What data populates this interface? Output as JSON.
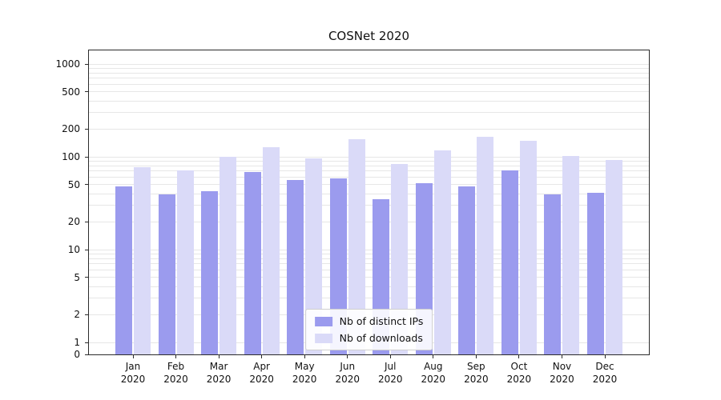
{
  "chart_data": {
    "type": "bar",
    "title": "COSNet 2020",
    "categories": [
      "Jan 2020",
      "Feb 2020",
      "Mar 2020",
      "Apr 2020",
      "May 2020",
      "Jun 2020",
      "Jul 2020",
      "Aug 2020",
      "Sep 2020",
      "Oct 2020",
      "Nov 2020",
      "Dec 2020"
    ],
    "series": [
      {
        "name": "Nb of distinct IPs",
        "color": "#9b9bee",
        "values": [
          48,
          39,
          43,
          68,
          56,
          58,
          35,
          52,
          48,
          71,
          39,
          41
        ]
      },
      {
        "name": "Nb of downloads",
        "color": "#dadaf8",
        "values": [
          78,
          71,
          100,
          126,
          97,
          155,
          83,
          118,
          165,
          150,
          102,
          93
        ]
      }
    ],
    "yscale": "symlog",
    "yticks": [
      0,
      1,
      2,
      5,
      10,
      20,
      50,
      100,
      200,
      500,
      1000
    ],
    "ylim": [
      0,
      1400
    ],
    "xlabel": "",
    "ylabel": "",
    "grid": true,
    "legend_position": "lower center"
  }
}
